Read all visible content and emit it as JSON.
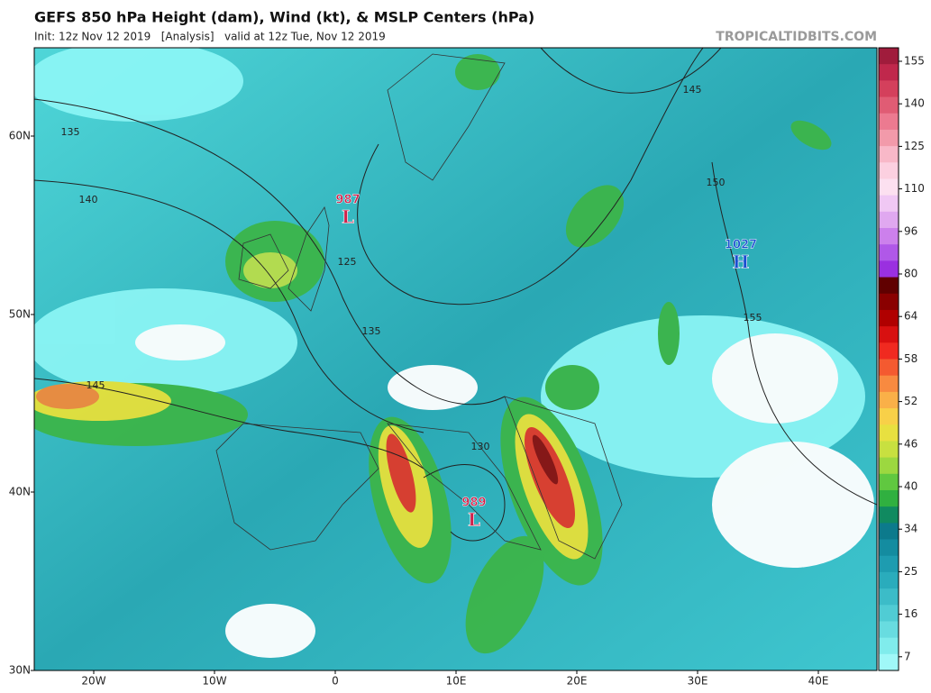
{
  "header": {
    "title": "GEFS 850 hPa Height (dam), Wind (kt), & MSLP Centers (hPa)",
    "subtitle": "Init: 12z Nov 12 2019   [Analysis]   valid at 12z Tue, Nov 12 2019",
    "credit": "TROPICALTIDBITS.COM"
  },
  "map": {
    "lat_labels": [
      "60N",
      "50N",
      "40N",
      "30N"
    ],
    "lon_labels": [
      "20W",
      "10W",
      "0",
      "10E",
      "20E",
      "30E",
      "40E"
    ],
    "contour_labels": [
      "135",
      "140",
      "125",
      "135",
      "145",
      "130",
      "145",
      "150",
      "155"
    ],
    "centers": [
      {
        "value": "987",
        "symbol": "L"
      },
      {
        "value": "989",
        "symbol": "L"
      },
      {
        "value": "1027",
        "symbol": "H"
      }
    ]
  },
  "colorbar": {
    "labels": [
      155,
      140,
      125,
      110,
      96,
      80,
      64,
      58,
      52,
      46,
      40,
      34,
      25,
      16,
      7
    ]
  }
}
